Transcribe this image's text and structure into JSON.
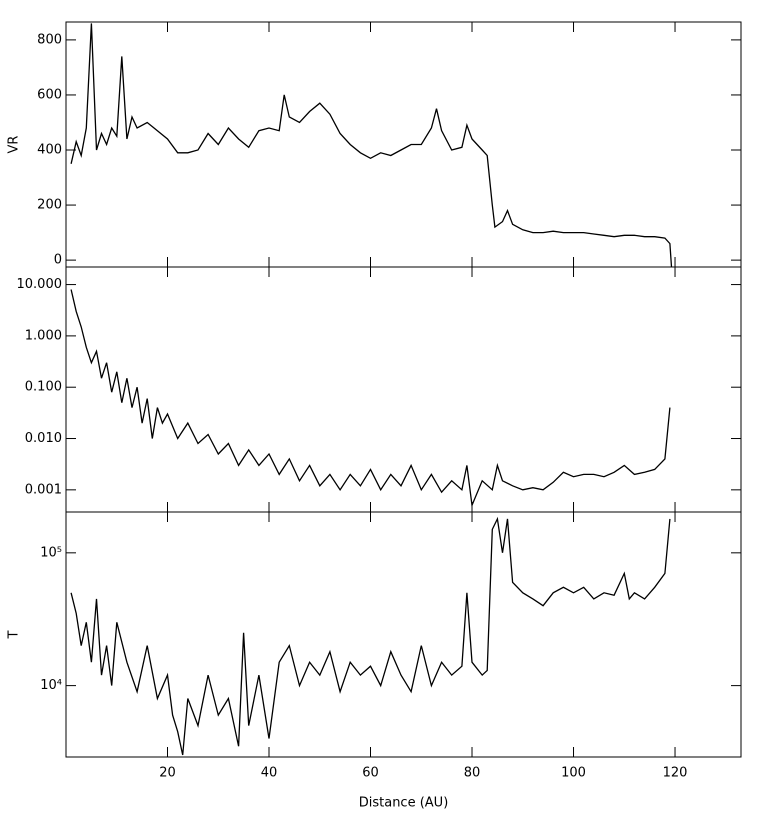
{
  "chart_data": [
    {
      "type": "line",
      "ylabel": "VR",
      "color": "#000000",
      "log": false,
      "xlim": [
        0,
        133
      ],
      "ylim": [
        -25,
        865
      ],
      "yticks": [
        0,
        200,
        400,
        600,
        800
      ],
      "x": [
        1,
        2,
        3,
        4,
        5,
        6,
        7,
        8,
        9,
        10,
        11,
        12,
        13,
        14,
        16,
        18,
        20,
        22,
        24,
        26,
        28,
        30,
        32,
        34,
        36,
        38,
        40,
        42,
        43,
        44,
        46,
        48,
        50,
        52,
        54,
        56,
        58,
        60,
        62,
        64,
        66,
        68,
        70,
        72,
        73,
        74,
        76,
        78,
        79,
        80,
        82,
        83,
        84,
        84.5,
        86,
        87,
        88,
        90,
        92,
        94,
        96,
        98,
        100,
        102,
        104,
        106,
        108,
        110,
        112,
        114,
        116,
        118,
        119,
        119.3
      ],
      "series": [
        {
          "values": [
            350,
            430,
            380,
            480,
            860,
            400,
            460,
            420,
            480,
            450,
            740,
            440,
            520,
            480,
            500,
            470,
            440,
            390,
            390,
            400,
            460,
            420,
            480,
            440,
            410,
            470,
            480,
            470,
            600,
            520,
            500,
            540,
            570,
            530,
            460,
            420,
            390,
            370,
            390,
            380,
            400,
            420,
            420,
            480,
            550,
            470,
            400,
            410,
            490,
            440,
            400,
            380,
            200,
            120,
            140,
            180,
            130,
            110,
            100,
            100,
            105,
            100,
            100,
            100,
            95,
            90,
            85,
            90,
            90,
            85,
            85,
            80,
            60,
            -25
          ]
        }
      ]
    },
    {
      "type": "line",
      "color": "#000000",
      "log": true,
      "xlim": [
        0,
        133
      ],
      "ylim": [
        0.00037,
        22
      ],
      "yticks": [
        {
          "value": 0.001,
          "label": "0.001"
        },
        {
          "value": 0.01,
          "label": "0.010"
        },
        {
          "value": 0.1,
          "label": "0.100"
        },
        {
          "value": 1,
          "label": "1.000"
        },
        {
          "value": 10,
          "label": "10.000"
        }
      ],
      "x": [
        1,
        2,
        3,
        4,
        5,
        6,
        7,
        8,
        9,
        10,
        11,
        12,
        13,
        14,
        15,
        16,
        17,
        18,
        19,
        20,
        22,
        24,
        26,
        28,
        30,
        32,
        34,
        36,
        38,
        40,
        42,
        44,
        46,
        48,
        50,
        52,
        54,
        56,
        58,
        60,
        62,
        64,
        66,
        68,
        70,
        72,
        74,
        76,
        78,
        79,
        80,
        82,
        84,
        85,
        86,
        88,
        90,
        92,
        94,
        96,
        98,
        100,
        102,
        104,
        106,
        108,
        110,
        112,
        114,
        116,
        118,
        119
      ],
      "series": [
        {
          "values": [
            8,
            3,
            1.5,
            0.6,
            0.3,
            0.5,
            0.15,
            0.3,
            0.08,
            0.2,
            0.05,
            0.15,
            0.04,
            0.1,
            0.02,
            0.06,
            0.01,
            0.04,
            0.02,
            0.03,
            0.01,
            0.02,
            0.008,
            0.012,
            0.005,
            0.008,
            0.003,
            0.006,
            0.003,
            0.005,
            0.002,
            0.004,
            0.0015,
            0.003,
            0.0012,
            0.002,
            0.001,
            0.002,
            0.0012,
            0.0025,
            0.001,
            0.002,
            0.0012,
            0.003,
            0.001,
            0.002,
            0.0009,
            0.0015,
            0.001,
            0.003,
            0.0005,
            0.0015,
            0.001,
            0.003,
            0.0015,
            0.0012,
            0.001,
            0.0011,
            0.001,
            0.0014,
            0.0022,
            0.0018,
            0.002,
            0.002,
            0.0018,
            0.0022,
            0.003,
            0.002,
            0.0022,
            0.0025,
            0.004,
            0.04
          ]
        }
      ]
    },
    {
      "type": "line",
      "ylabel": "T",
      "xlabel": "Distance (AU)",
      "color": "#000000",
      "log": true,
      "xlim": [
        0,
        133
      ],
      "ylim": [
        2900,
        203000
      ],
      "xticks": [
        20,
        40,
        60,
        80,
        100,
        120
      ],
      "yticks": [
        {
          "value": 10000,
          "label": "10⁴"
        },
        {
          "value": 100000,
          "label": "10⁵"
        }
      ],
      "x": [
        1,
        2,
        3,
        4,
        5,
        6,
        7,
        8,
        9,
        10,
        12,
        14,
        16,
        18,
        20,
        21,
        22,
        23,
        24,
        26,
        28,
        30,
        32,
        34,
        35,
        36,
        38,
        40,
        42,
        44,
        46,
        48,
        50,
        52,
        54,
        56,
        58,
        60,
        62,
        64,
        66,
        68,
        70,
        72,
        74,
        76,
        78,
        79,
        80,
        82,
        83,
        84,
        85,
        86,
        87,
        88,
        90,
        92,
        94,
        96,
        98,
        100,
        102,
        104,
        106,
        108,
        110,
        111,
        112,
        114,
        116,
        118,
        119
      ],
      "series": [
        {
          "values": [
            50000,
            35000,
            20000,
            30000,
            15000,
            45000,
            12000,
            20000,
            10000,
            30000,
            15000,
            9000,
            20000,
            8000,
            12000,
            6000,
            4500,
            3000,
            8000,
            5000,
            12000,
            6000,
            8000,
            3500,
            25000,
            5000,
            12000,
            4000,
            15000,
            20000,
            10000,
            15000,
            12000,
            18000,
            9000,
            15000,
            12000,
            14000,
            10000,
            18000,
            12000,
            9000,
            20000,
            10000,
            15000,
            12000,
            14000,
            50000,
            15000,
            12000,
            13000,
            150000,
            180000,
            100000,
            180000,
            60000,
            50000,
            45000,
            40000,
            50000,
            55000,
            50000,
            55000,
            45000,
            50000,
            48000,
            70000,
            45000,
            50000,
            45000,
            55000,
            70000,
            180000
          ]
        }
      ]
    }
  ]
}
